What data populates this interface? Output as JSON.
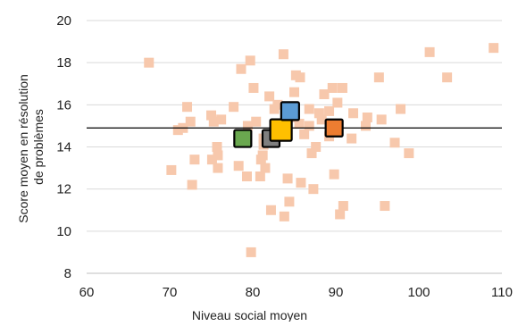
{
  "chart_data": {
    "type": "scatter",
    "title": "",
    "xlabel": "Niveau social moyen",
    "ylabel_lines": [
      "Score moyen en résolution",
      "de problèmes"
    ],
    "xlim": [
      60,
      110
    ],
    "ylim": [
      8,
      20
    ],
    "x_ticks": [
      60,
      70,
      80,
      90,
      100,
      110
    ],
    "y_ticks": [
      8,
      10,
      12,
      14,
      16,
      18,
      20
    ],
    "grid": "horizontal",
    "reference_line_y": 14.9,
    "colors": {
      "background_points": "#f7c8ac",
      "reference_line": "#000000",
      "grid": "#d9d9d9",
      "highlight_border": "#000000"
    },
    "series": [
      {
        "values": [
          [
            67.5,
            18.0
          ],
          [
            70.2,
            12.9
          ],
          [
            71.0,
            14.8
          ],
          [
            71.6,
            14.9
          ],
          [
            72.1,
            15.9
          ],
          [
            72.5,
            15.2
          ],
          [
            72.7,
            12.2
          ],
          [
            73.0,
            13.4
          ],
          [
            75.0,
            15.5
          ],
          [
            75.1,
            13.4
          ],
          [
            75.3,
            15.2
          ],
          [
            75.7,
            14.0
          ],
          [
            75.8,
            13.0
          ],
          [
            75.8,
            13.6
          ],
          [
            76.2,
            15.3
          ],
          [
            77.7,
            15.9
          ],
          [
            78.3,
            13.1
          ],
          [
            78.6,
            17.7
          ],
          [
            79.3,
            12.6
          ],
          [
            79.4,
            15.0
          ],
          [
            79.7,
            18.1
          ],
          [
            79.8,
            9.0
          ],
          [
            80.4,
            15.2
          ],
          [
            80.1,
            16.8
          ],
          [
            80.9,
            12.6
          ],
          [
            81.0,
            13.4
          ],
          [
            81.2,
            13.6
          ],
          [
            81.3,
            14.1
          ],
          [
            81.3,
            14.4
          ],
          [
            81.5,
            13.0
          ],
          [
            82.0,
            16.4
          ],
          [
            82.2,
            11.0
          ],
          [
            82.6,
            15.8
          ],
          [
            83.0,
            16.0
          ],
          [
            83.7,
            18.4
          ],
          [
            83.8,
            10.7
          ],
          [
            84.2,
            12.5
          ],
          [
            84.4,
            11.4
          ],
          [
            84.8,
            15.4
          ],
          [
            85.0,
            16.6
          ],
          [
            85.2,
            17.4
          ],
          [
            85.7,
            17.3
          ],
          [
            85.6,
            15.1
          ],
          [
            85.8,
            12.3
          ],
          [
            86.2,
            14.6
          ],
          [
            86.8,
            15.8
          ],
          [
            86.8,
            15.0
          ],
          [
            87.1,
            13.7
          ],
          [
            87.3,
            12.0
          ],
          [
            87.6,
            14.0
          ],
          [
            88.0,
            15.6
          ],
          [
            88.6,
            16.5
          ],
          [
            88.3,
            15.3
          ],
          [
            89.2,
            15.7
          ],
          [
            89.2,
            14.5
          ],
          [
            89.6,
            16.8
          ],
          [
            89.8,
            12.7
          ],
          [
            90.2,
            16.1
          ],
          [
            90.5,
            10.8
          ],
          [
            90.8,
            16.8
          ],
          [
            90.9,
            11.2
          ],
          [
            91.9,
            14.4
          ],
          [
            92.1,
            15.6
          ],
          [
            93.6,
            15.0
          ],
          [
            93.8,
            15.4
          ],
          [
            95.2,
            17.3
          ],
          [
            95.5,
            15.3
          ],
          [
            95.9,
            11.2
          ],
          [
            97.1,
            14.2
          ],
          [
            97.8,
            15.8
          ],
          [
            98.8,
            13.7
          ],
          [
            101.3,
            18.5
          ],
          [
            103.4,
            17.3
          ],
          [
            109.0,
            18.7
          ]
        ]
      },
      {
        "color": "#6aa84f",
        "values": [
          [
            78.8,
            14.4
          ]
        ]
      },
      {
        "color": "#7f7f7f",
        "values": [
          [
            82.2,
            14.4
          ]
        ]
      },
      {
        "color": "#ffc000",
        "values": [
          [
            83.4,
            14.8
          ]
        ]
      },
      {
        "color": "#5b9bd5",
        "values": [
          [
            84.5,
            15.7
          ]
        ]
      },
      {
        "color": "#ed7d31",
        "values": [
          [
            89.8,
            14.9
          ]
        ]
      }
    ]
  }
}
